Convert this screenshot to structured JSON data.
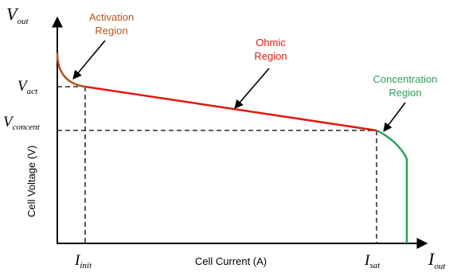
{
  "axes": {
    "y_symbol_main": "V",
    "y_symbol_sub": "out",
    "x_symbol_main": "I",
    "x_symbol_sub": "out",
    "y_title": "Cell Voltage (V)",
    "x_title": "Cell Current (A)"
  },
  "markers": {
    "v_act_main": "V",
    "v_act_sub": "act",
    "v_concent_main": "V",
    "v_concent_sub": "concent",
    "i_init_main": "I",
    "i_init_sub": "init",
    "i_sat_main": "I",
    "i_sat_sub": "sat"
  },
  "regions": {
    "activation": {
      "line1": "Activation",
      "line2": "Region",
      "color": "#b5541c"
    },
    "ohmic": {
      "line1": "Ohmic",
      "line2": "Region",
      "color": "#dd1a12"
    },
    "concentration": {
      "line1": "Concentration",
      "line2": "Region",
      "color": "#2e9e5b"
    }
  },
  "colors": {
    "axis": "#000000",
    "guide": "#000000"
  }
}
